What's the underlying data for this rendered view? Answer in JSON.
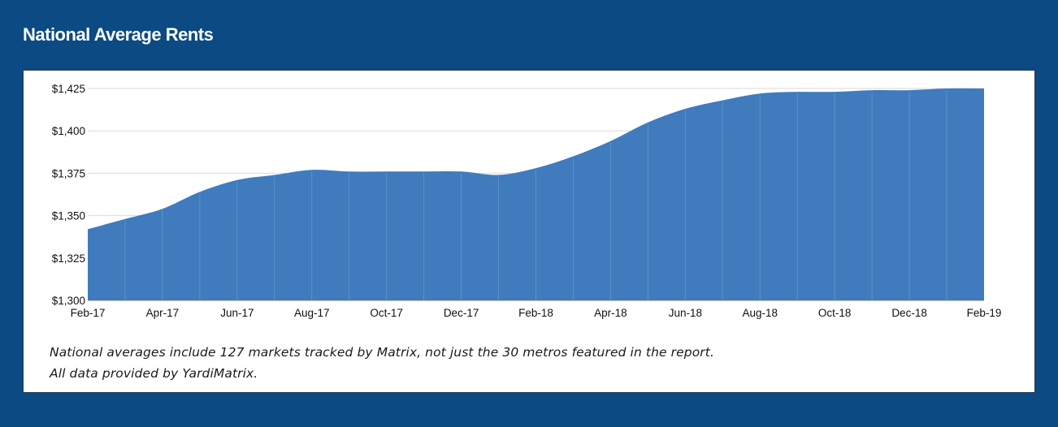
{
  "page_title": "National Average Rents",
  "chart_data": {
    "type": "area",
    "title": "National Average Rents",
    "xlabel": "",
    "ylabel": "",
    "ylim": [
      1300,
      1425
    ],
    "y_ticks": [
      1300,
      1325,
      1350,
      1375,
      1400,
      1425
    ],
    "y_tick_labels": [
      "$1,300",
      "$1,325",
      "$1,350",
      "$1,375",
      "$1,400",
      "$1,425"
    ],
    "x_tick_labels": [
      "Feb-17",
      "Apr-17",
      "Jun-17",
      "Aug-17",
      "Oct-17",
      "Dec-17",
      "Feb-18",
      "Apr-18",
      "Jun-18",
      "Aug-18",
      "Oct-18",
      "Dec-18",
      "Feb-19"
    ],
    "categories": [
      "Feb-17",
      "Mar-17",
      "Apr-17",
      "May-17",
      "Jun-17",
      "Jul-17",
      "Aug-17",
      "Sep-17",
      "Oct-17",
      "Nov-17",
      "Dec-17",
      "Jan-18",
      "Feb-18",
      "Mar-18",
      "Apr-18",
      "May-18",
      "Jun-18",
      "Jul-18",
      "Aug-18",
      "Sep-18",
      "Oct-18",
      "Nov-18",
      "Dec-18",
      "Jan-19",
      "Feb-19"
    ],
    "values": [
      1342,
      1348,
      1354,
      1364,
      1371,
      1374,
      1377,
      1376,
      1376,
      1376,
      1376,
      1374,
      1378,
      1385,
      1394,
      1405,
      1413,
      1418,
      1422,
      1423,
      1423,
      1424,
      1424,
      1425,
      1425
    ],
    "grid": true,
    "legend": "none",
    "fill_color": "#3f7bbd"
  },
  "notes": [
    "National averages include 127 markets tracked by Matrix, not just the 30 metros featured in the report.",
    "All data provided by YardiMatrix."
  ]
}
